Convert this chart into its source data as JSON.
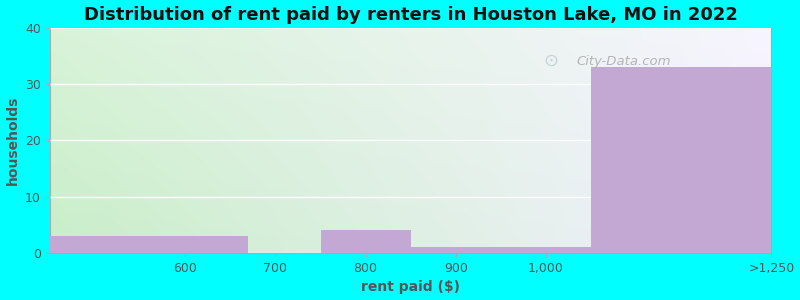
{
  "title": "Distribution of rent paid by renters in Houston Lake, MO in 2022",
  "xlabel": "rent paid ($)",
  "ylabel": "households",
  "tick_labels": [
    "600",
    "700",
    "800",
    "900",
    "1,000",
    ">1,250"
  ],
  "bar_values": [
    3,
    4,
    1,
    1,
    33
  ],
  "bar_left_edges": [
    450,
    750,
    850,
    950,
    1050
  ],
  "bar_right_edges": [
    670,
    850,
    950,
    1050,
    1250
  ],
  "bar_color": "#c4a8d4",
  "ylim": [
    0,
    40
  ],
  "yticks": [
    0,
    10,
    20,
    30,
    40
  ],
  "xlim": [
    450,
    1250
  ],
  "xtick_positions": [
    600,
    700,
    800,
    900,
    1000,
    1250
  ],
  "background_color": "#00ffff",
  "grad_color_left": "#c8eec8",
  "grad_color_right": "#f0f0ff",
  "title_fontsize": 13,
  "axis_label_fontsize": 10,
  "watermark_text": "City-Data.com"
}
